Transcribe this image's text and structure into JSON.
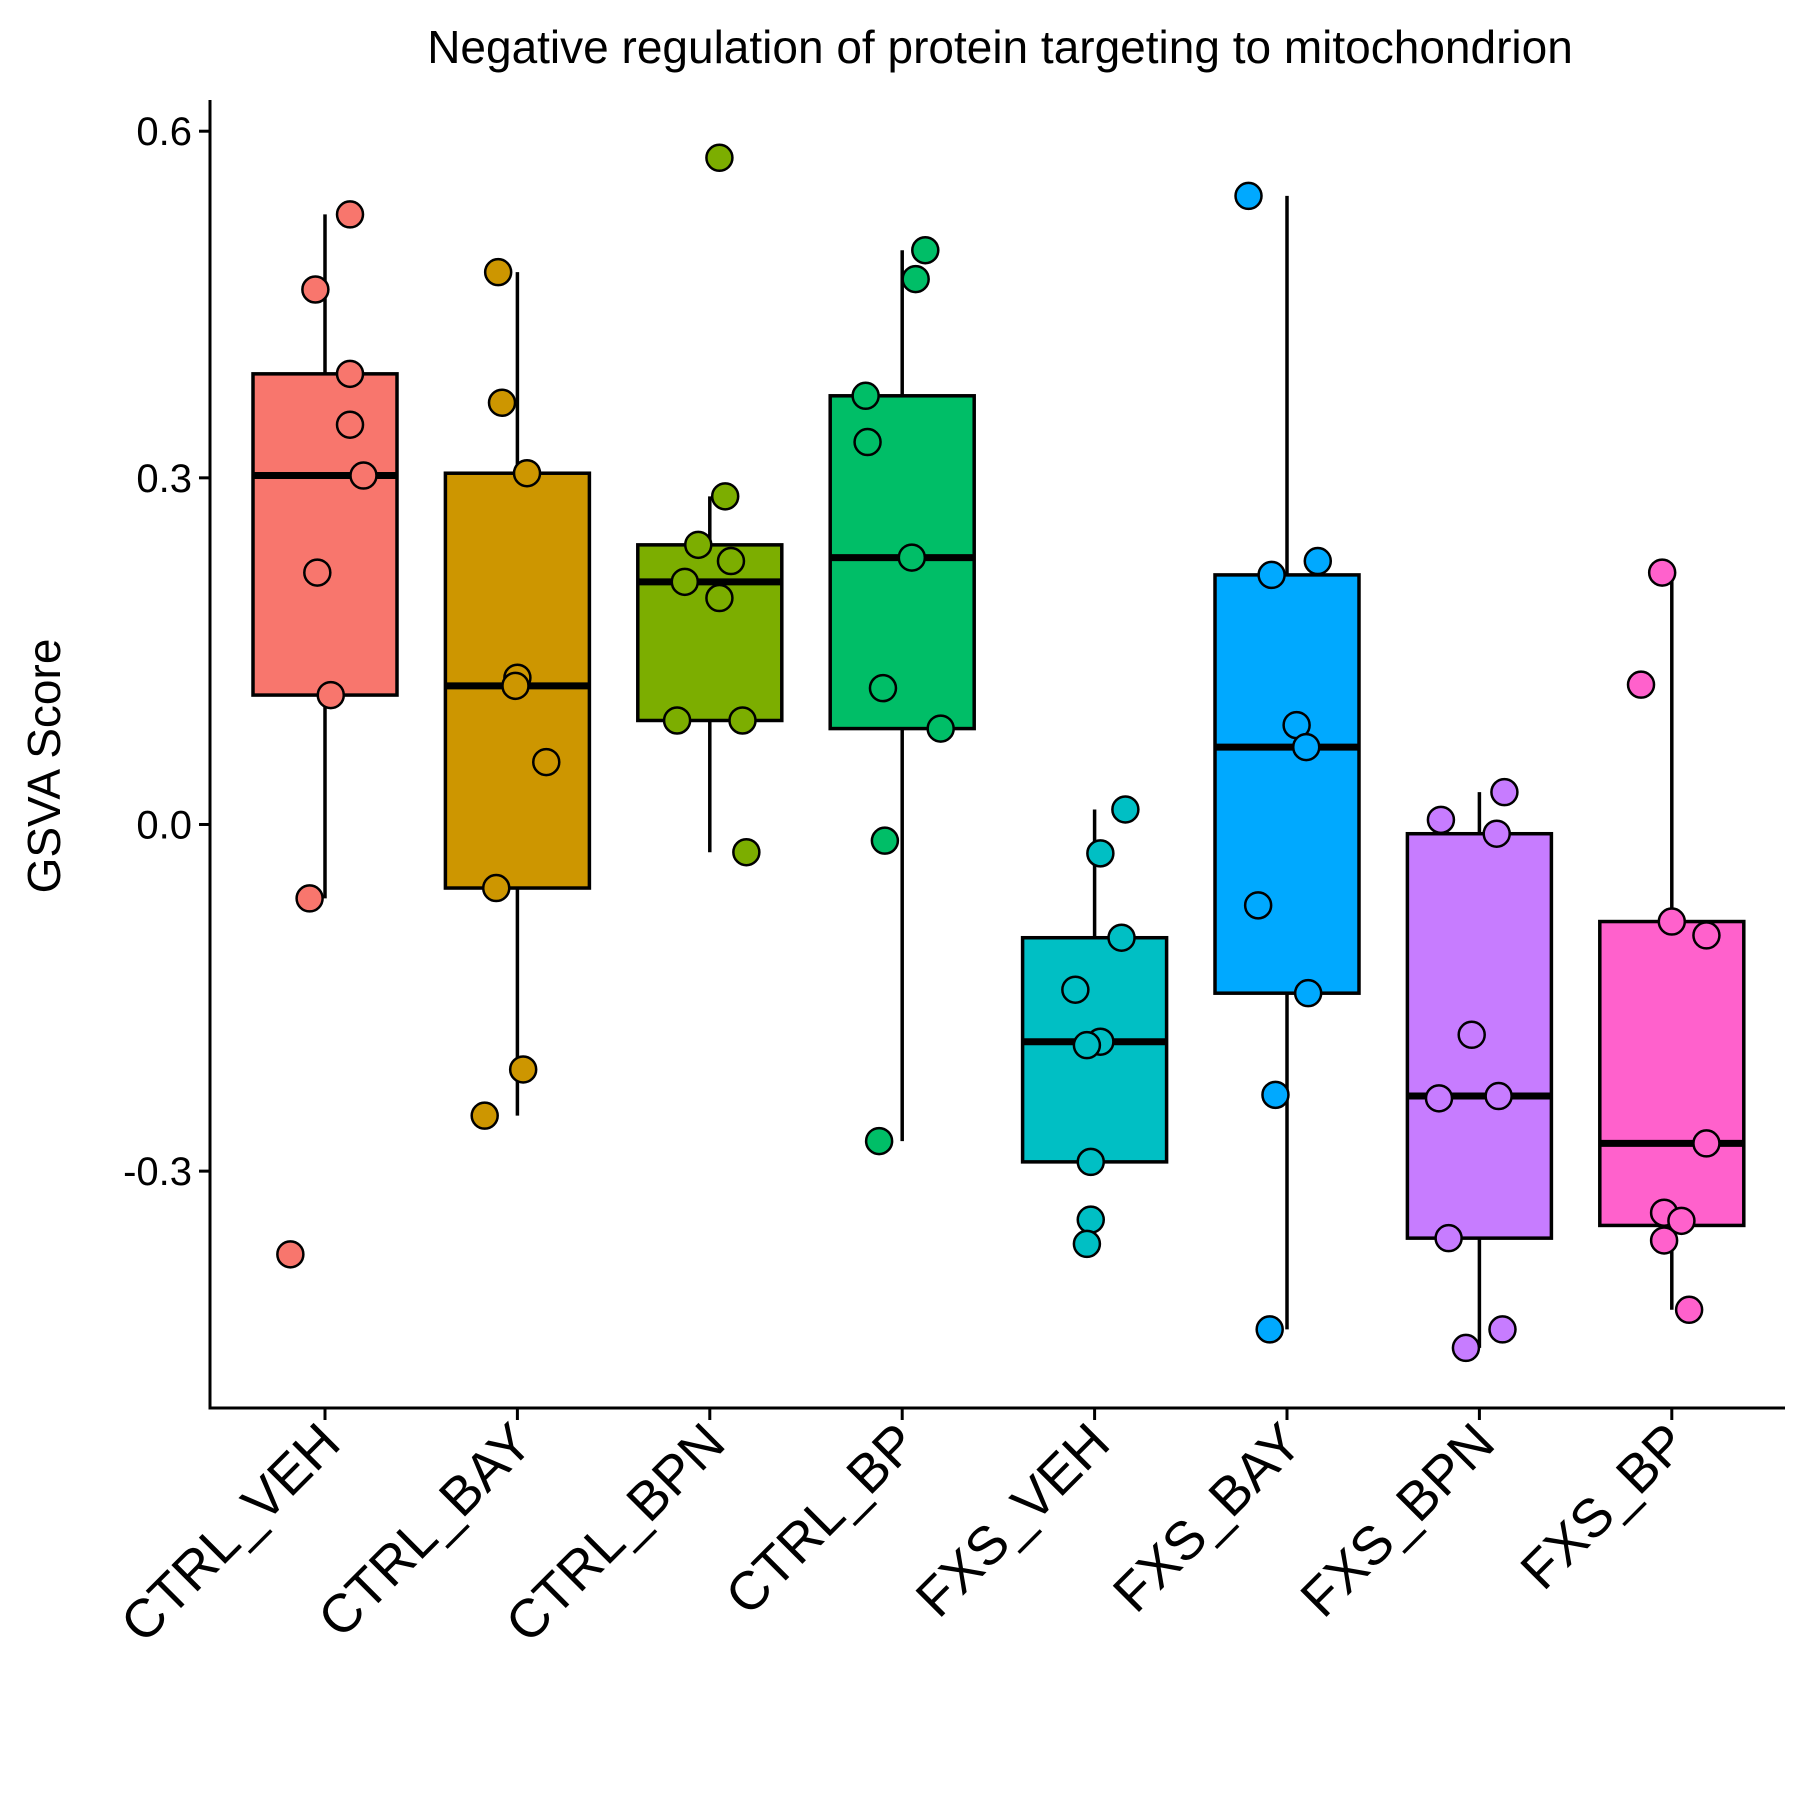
{
  "chart_data": {
    "type": "boxplot",
    "title": "Negative regulation of protein targeting to mitochondrion",
    "xlabel": "",
    "ylabel": "GSVA Score",
    "ylim": [
      -0.505,
      0.627
    ],
    "yticks": [
      {
        "value": 0.6,
        "label": "0.6"
      },
      {
        "value": 0.3,
        "label": "0.3"
      },
      {
        "value": 0.0,
        "label": "0.0"
      },
      {
        "value": -0.3,
        "label": "-0.3"
      }
    ],
    "legend": "none",
    "grid": false,
    "categories": [
      "CTRL_VEH",
      "CTRL_BAY",
      "CTRL_BPN",
      "CTRL_BP",
      "FXS_VEH",
      "FXS_BAY",
      "FXS_BPN",
      "FXS_BP"
    ],
    "colors": [
      "#F8766D",
      "#CD9600",
      "#7CAE00",
      "#00BE67",
      "#00BFC4",
      "#00A9FF",
      "#C77CFF",
      "#FF61CC"
    ],
    "series": [
      {
        "category": "CTRL_VEH",
        "box": {
          "whisker_low": -0.064,
          "q1": 0.112,
          "median": 0.302,
          "q3": 0.39,
          "whisker_high": 0.528
        },
        "points": [
          0.528,
          0.463,
          0.39,
          0.346,
          0.302,
          0.218,
          0.112,
          -0.064,
          -0.372
        ],
        "jitter": [
          0.13,
          -0.05,
          0.13,
          0.13,
          0.2,
          -0.04,
          0.03,
          -0.08,
          -0.18
        ]
      },
      {
        "category": "CTRL_BAY",
        "box": {
          "whisker_low": -0.252,
          "q1": -0.055,
          "median": 0.12,
          "q3": 0.304,
          "whisker_high": 0.478
        },
        "points": [
          0.478,
          0.365,
          0.304,
          0.127,
          0.12,
          0.054,
          -0.055,
          -0.212,
          -0.252
        ],
        "jitter": [
          -0.1,
          -0.08,
          0.05,
          0.0,
          -0.01,
          0.15,
          -0.11,
          0.03,
          -0.17
        ]
      },
      {
        "category": "CTRL_BPN",
        "box": {
          "whisker_low": -0.024,
          "q1": 0.09,
          "median": 0.21,
          "q3": 0.242,
          "whisker_high": 0.284
        },
        "points": [
          0.577,
          0.284,
          0.242,
          0.228,
          0.21,
          0.196,
          0.09,
          0.09,
          -0.024
        ],
        "jitter": [
          0.05,
          0.08,
          -0.06,
          0.11,
          -0.13,
          0.05,
          -0.17,
          0.17,
          0.19
        ]
      },
      {
        "category": "CTRL_BP",
        "box": {
          "whisker_low": -0.274,
          "q1": 0.083,
          "median": 0.231,
          "q3": 0.371,
          "whisker_high": 0.497
        },
        "points": [
          0.497,
          0.472,
          0.371,
          0.331,
          0.231,
          0.118,
          0.083,
          -0.014,
          -0.274
        ],
        "jitter": [
          0.12,
          0.07,
          -0.19,
          -0.18,
          0.05,
          -0.1,
          0.2,
          -0.09,
          -0.12
        ]
      },
      {
        "category": "FXS_VEH",
        "box": {
          "whisker_low": -0.292,
          "q1": -0.292,
          "median": -0.188,
          "q3": -0.098,
          "whisker_high": 0.013
        },
        "points": [
          0.013,
          -0.025,
          -0.098,
          -0.143,
          -0.188,
          -0.191,
          -0.292,
          -0.342,
          -0.363
        ],
        "jitter": [
          0.16,
          0.03,
          0.14,
          -0.1,
          0.03,
          -0.04,
          -0.02,
          -0.02,
          -0.04
        ]
      },
      {
        "category": "FXS_BAY",
        "box": {
          "whisker_low": -0.437,
          "q1": -0.146,
          "median": 0.067,
          "q3": 0.216,
          "whisker_high": 0.544
        },
        "points": [
          0.544,
          0.228,
          0.216,
          0.086,
          0.067,
          -0.07,
          -0.146,
          -0.234,
          -0.437
        ],
        "jitter": [
          -0.2,
          0.16,
          -0.08,
          0.05,
          0.1,
          -0.15,
          0.11,
          -0.06,
          -0.09
        ]
      },
      {
        "category": "FXS_BPN",
        "box": {
          "whisker_low": -0.453,
          "q1": -0.358,
          "median": -0.235,
          "q3": -0.008,
          "whisker_high": 0.028
        },
        "points": [
          0.028,
          0.004,
          -0.008,
          -0.182,
          -0.235,
          -0.237,
          -0.358,
          -0.437,
          -0.453
        ],
        "jitter": [
          0.13,
          -0.2,
          0.09,
          -0.04,
          0.1,
          -0.21,
          -0.16,
          0.12,
          -0.07
        ]
      },
      {
        "category": "FXS_BP",
        "box": {
          "whisker_low": -0.42,
          "q1": -0.347,
          "median": -0.276,
          "q3": -0.084,
          "whisker_high": 0.218
        },
        "points": [
          0.218,
          0.121,
          -0.084,
          -0.096,
          -0.276,
          -0.336,
          -0.343,
          -0.36,
          -0.42
        ],
        "jitter": [
          -0.05,
          -0.16,
          0.0,
          0.18,
          0.18,
          -0.04,
          0.05,
          -0.04,
          0.09
        ]
      }
    ]
  }
}
